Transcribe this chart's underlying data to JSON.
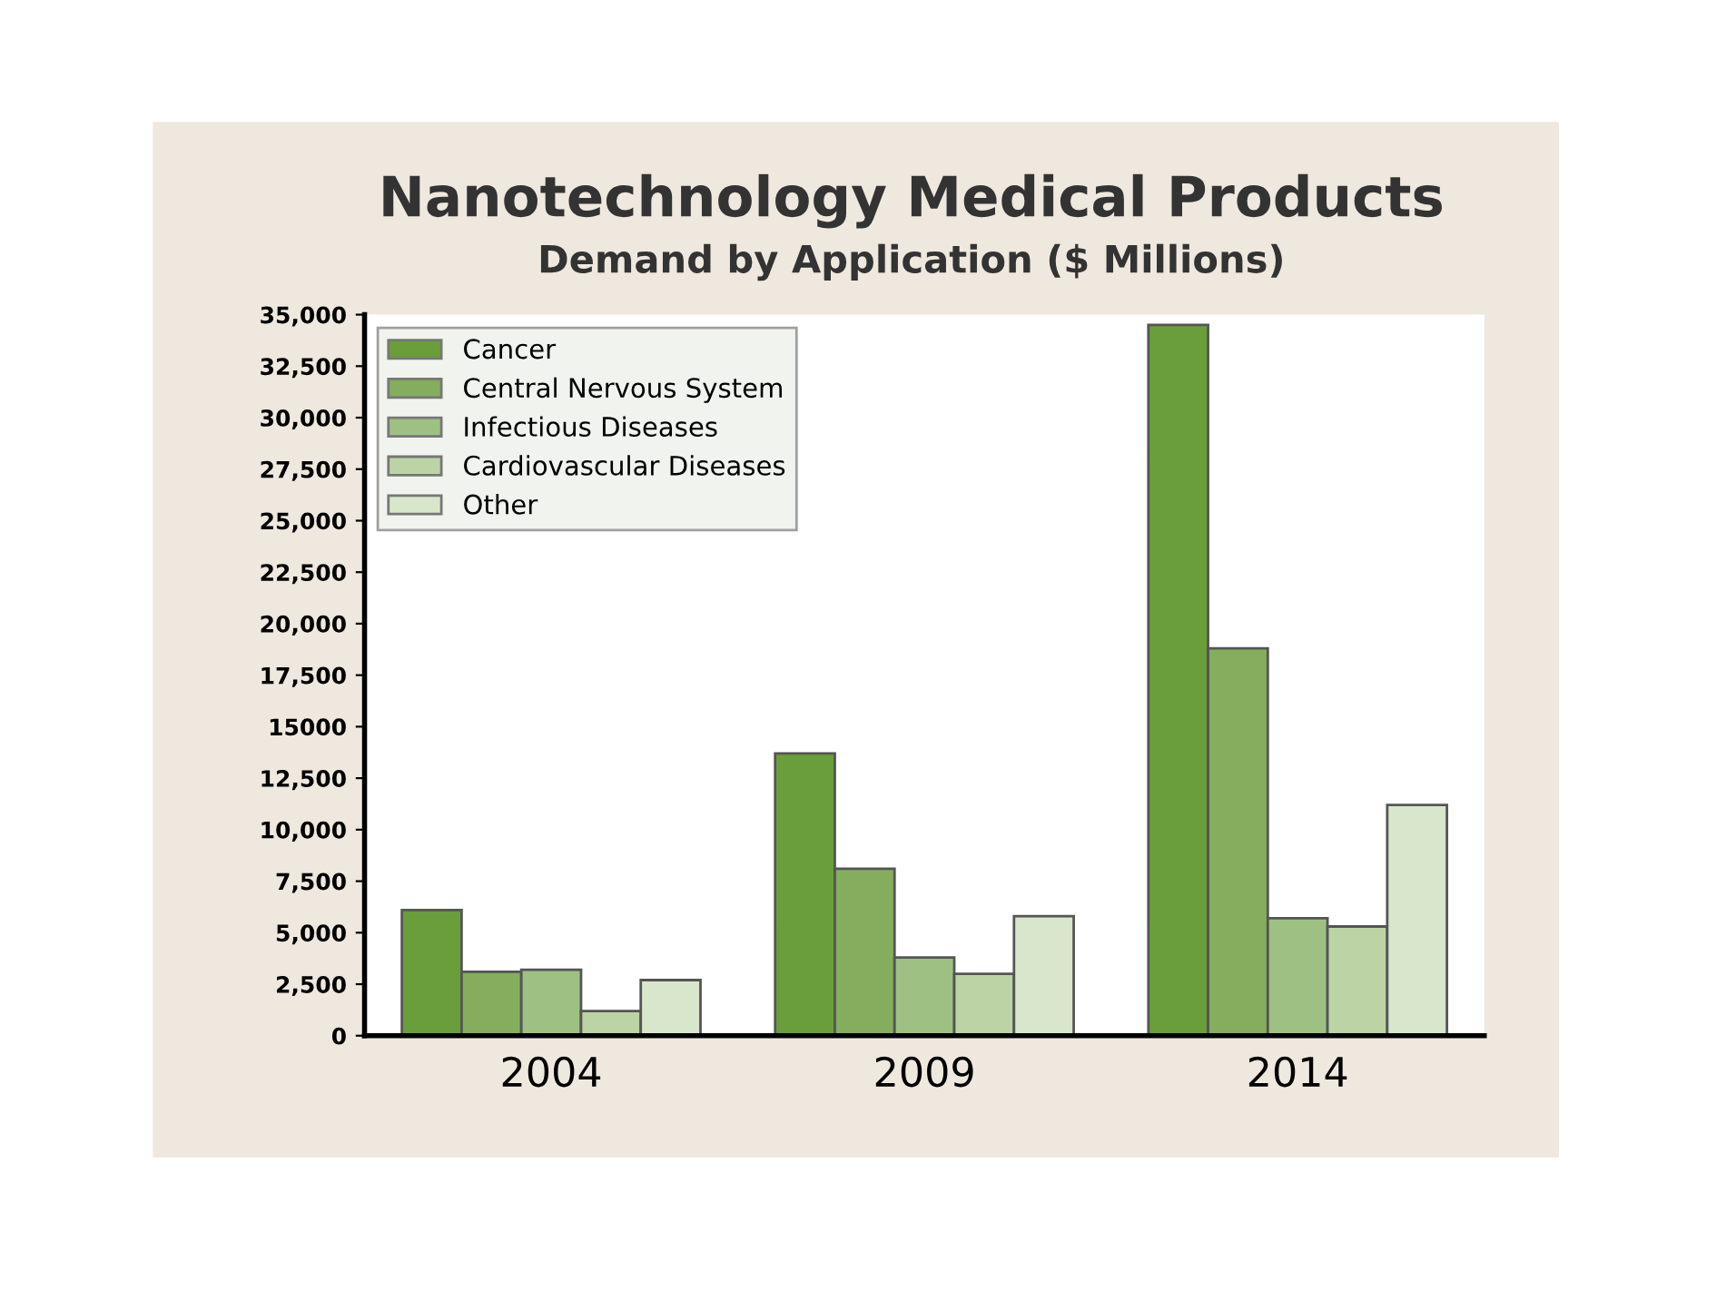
{
  "chart_data": {
    "type": "bar",
    "title": "Nanotechnology Medical Products",
    "subtitle": "Demand by Application ($ Millions)",
    "categories": [
      "2004",
      "2009",
      "2014"
    ],
    "series": [
      {
        "name": "Cancer",
        "color": "#6a9e3a",
        "values": [
          6100,
          13700,
          34500
        ]
      },
      {
        "name": "Central Nervous System",
        "color": "#85ad5e",
        "values": [
          3100,
          8100,
          18800
        ]
      },
      {
        "name": "Infectious Diseases",
        "color": "#9fc083",
        "values": [
          3200,
          3800,
          5700
        ]
      },
      {
        "name": "Cardiovascular Diseases",
        "color": "#bcd4a5",
        "values": [
          1200,
          3000,
          5300
        ]
      },
      {
        "name": "Other",
        "color": "#d8e6cc",
        "values": [
          2700,
          5800,
          11200
        ]
      }
    ],
    "ylim": [
      0,
      35000
    ],
    "yticks": [
      0,
      {
        "value": 2500,
        "label": "2,500"
      },
      {
        "value": 5000,
        "label": "5,000"
      },
      {
        "value": 7500,
        "label": "7,500"
      },
      {
        "value": 10000,
        "label": "10,000"
      },
      {
        "value": 12500,
        "label": "12,500"
      },
      15000,
      {
        "value": 17500,
        "label": "17,500"
      },
      {
        "value": 20000,
        "label": "20,000"
      },
      {
        "value": 22500,
        "label": "22,500"
      },
      {
        "value": 25000,
        "label": "25,000"
      },
      {
        "value": 27500,
        "label": "27,500"
      },
      {
        "value": 30000,
        "label": "30,000"
      },
      {
        "value": 32500,
        "label": "32,500"
      },
      {
        "value": 35000,
        "label": "35,000"
      }
    ],
    "grid": false,
    "legend": "top left"
  }
}
